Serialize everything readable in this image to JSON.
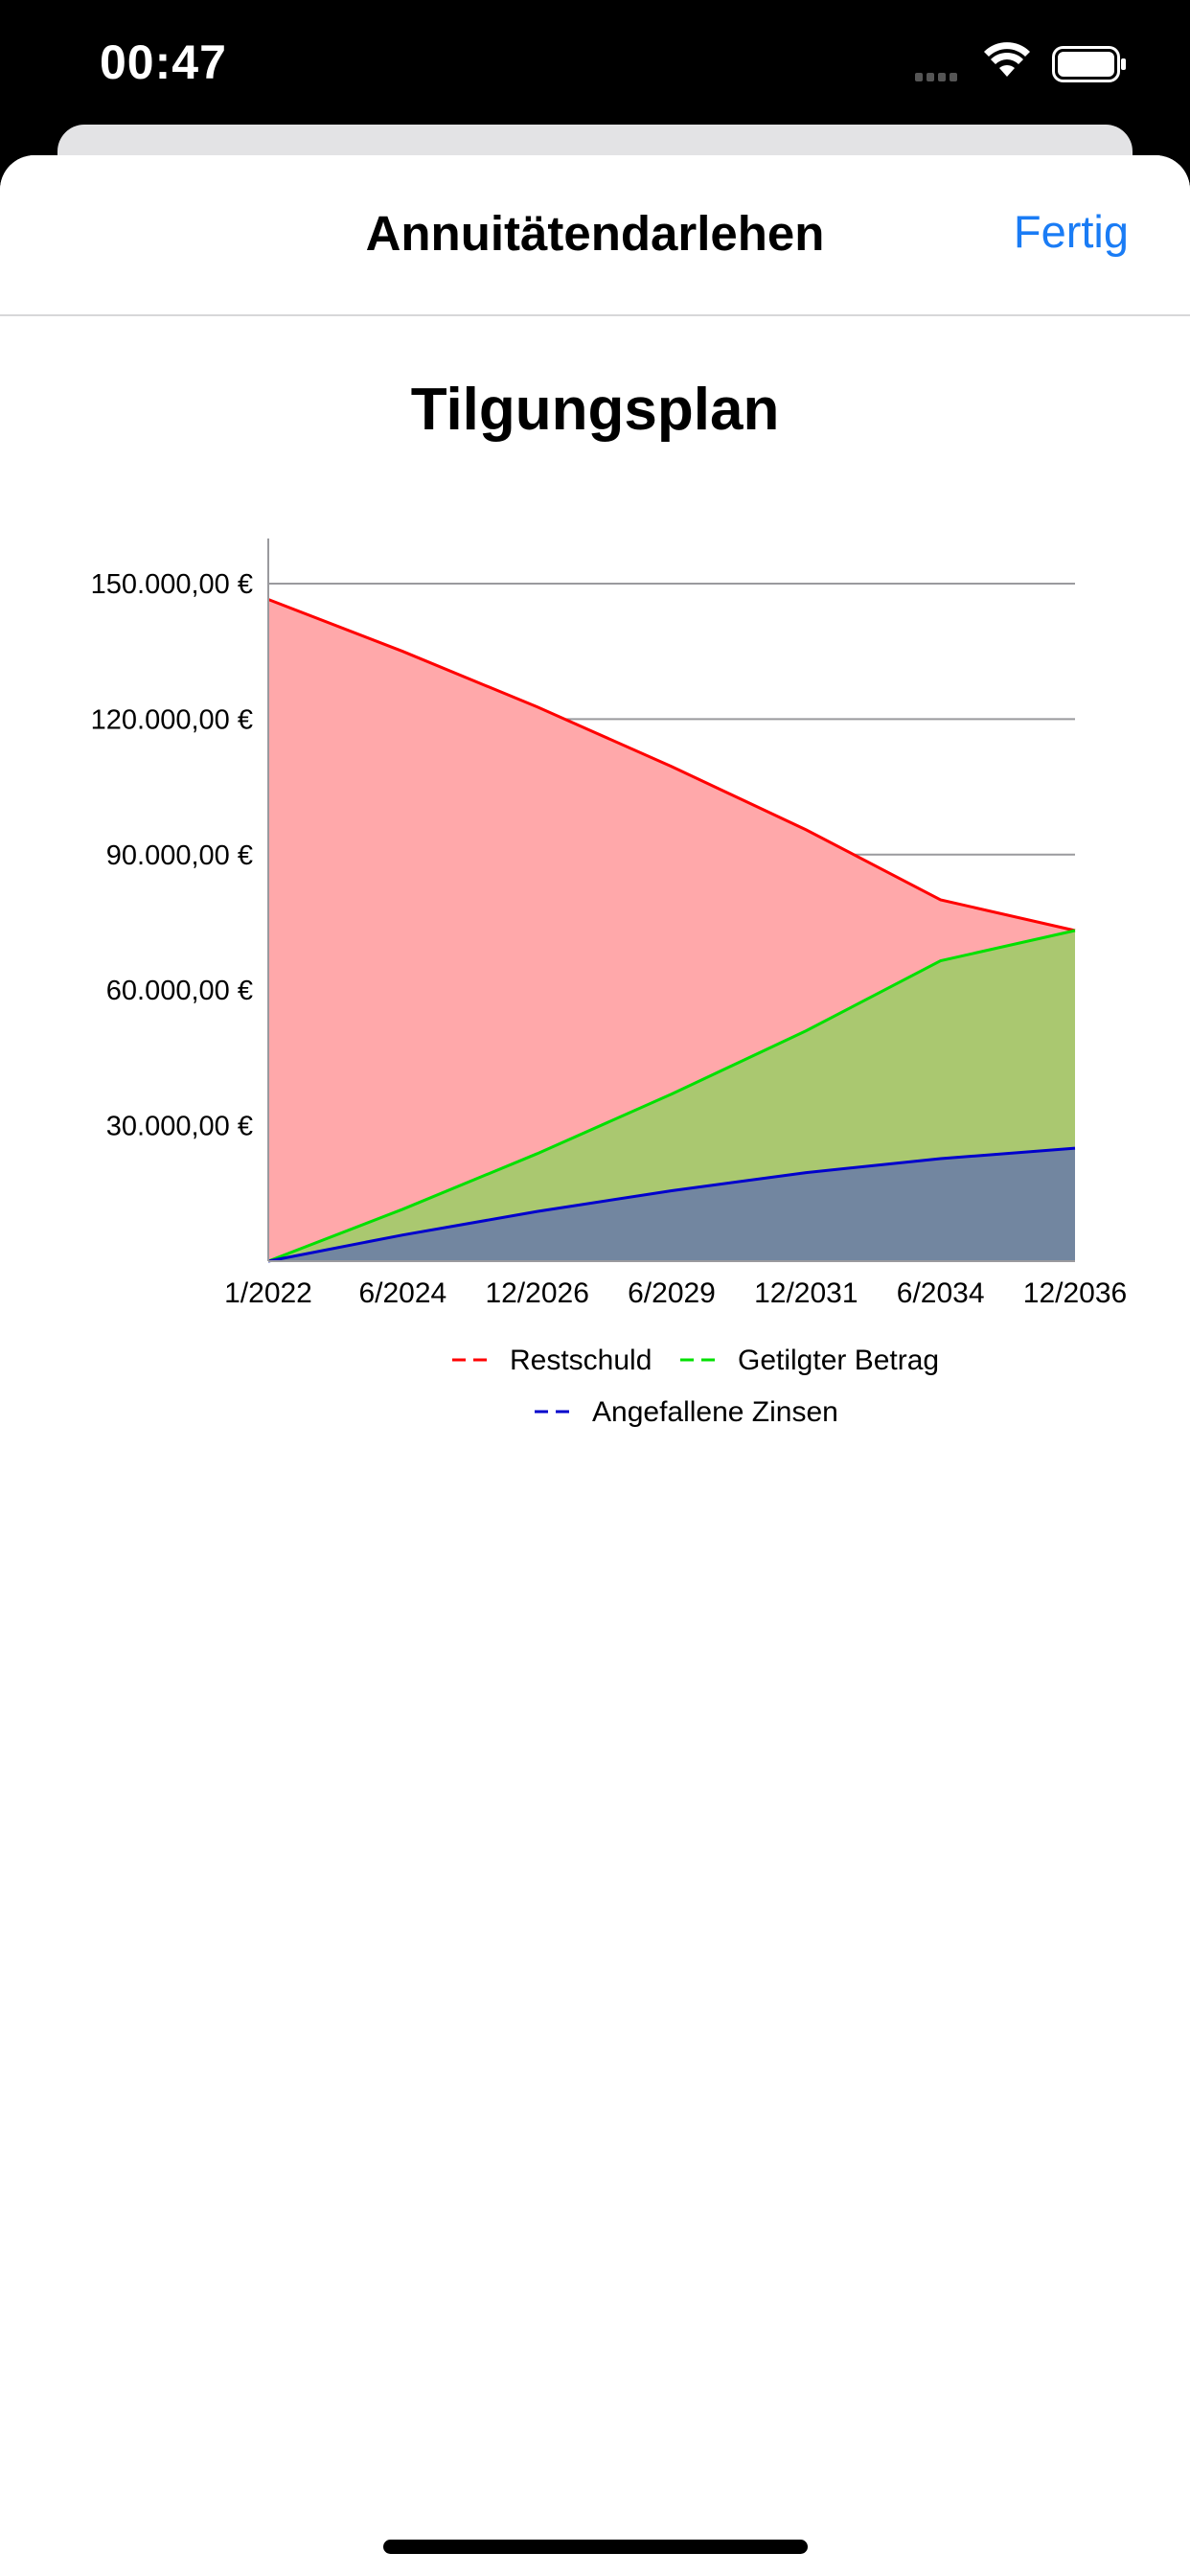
{
  "status_bar": {
    "time": "00:47"
  },
  "nav": {
    "title": "Annuitätendarlehen",
    "done_label": "Fertig"
  },
  "chart_data": {
    "type": "area",
    "title": "Tilgungsplan",
    "x": [
      "1/2022",
      "6/2024",
      "12/2026",
      "6/2029",
      "12/2031",
      "6/2034",
      "12/2036"
    ],
    "x_tick_labels": [
      "1/2022",
      "6/2024",
      "12/2026",
      "6/2029",
      "12/2031",
      "6/2034",
      "12/2036"
    ],
    "y_tick_labels": [
      "30.000,00 €",
      "60.000,00 €",
      "90.000,00 €",
      "120.000,00 €",
      "150.000,00 €"
    ],
    "y_ticks": [
      30000,
      60000,
      90000,
      120000,
      150000
    ],
    "ylim": [
      0,
      160000
    ],
    "grid": true,
    "legend_position": "bottom",
    "series": [
      {
        "name": "Restschuld",
        "color": "#ff0000",
        "fill": "#ffa8aa",
        "values": [
          146500,
          135000,
          122700,
          109500,
          95500,
          80000,
          73200
        ]
      },
      {
        "name": "Getilgter Betrag",
        "color": "#00e000",
        "fill": "#aac870",
        "values": [
          0,
          11500,
          23800,
          37000,
          51000,
          66500,
          73200
        ]
      },
      {
        "name": "Angefallene Zinsen",
        "color": "#0000cc",
        "fill": "#7286a0",
        "values": [
          0,
          5800,
          11000,
          15600,
          19600,
          22700,
          25000
        ]
      }
    ]
  }
}
